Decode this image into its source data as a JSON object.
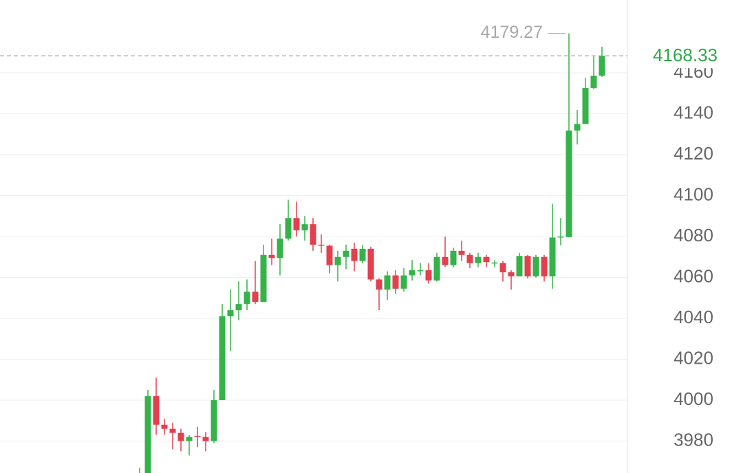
{
  "chart_data": {
    "type": "candlestick",
    "up_color": "#34b349",
    "down_color": "#e2404e",
    "grid": true,
    "ylim": [
      3964.4,
      4195.6
    ],
    "yticks": [
      3980,
      4000,
      4020,
      4040,
      4060,
      4080,
      4100,
      4120,
      4140,
      4160
    ],
    "open": [
      3955,
      3962,
      4002,
      3988,
      3986,
      3984,
      3980,
      3982.5,
      3982,
      3980,
      4000,
      4041,
      4044,
      4047,
      4053,
      4048,
      4071,
      4069.5,
      4079,
      4089,
      4083,
      4086,
      4076,
      4075.5,
      4066,
      4070,
      4074,
      4068,
      4074,
      4059,
      4054,
      4061,
      4054.5,
      4061,
      4063,
      4063.5,
      4058.5,
      4070,
      4066,
      4073,
      4071,
      4067,
      4070,
      4067,
      4067,
      4062.5,
      4060.5,
      4070.5,
      4060.5,
      4070,
      4060.5,
      4079.5,
      4079.7,
      4131.8,
      4135,
      4152.6,
      4158.6
    ],
    "high": [
      3967,
      4005,
      4011,
      3991,
      3989,
      3986,
      3983,
      3987,
      3984.5,
      4005,
      4047,
      4054,
      4058,
      4059,
      4068,
      4076,
      4079,
      4086,
      4098,
      4097,
      4090,
      4089,
      4081,
      4076,
      4073,
      4076,
      4077,
      4076,
      4075,
      4059.5,
      4063,
      4063.5,
      4064.5,
      4068.5,
      4067,
      4067,
      4072,
      4080,
      4074.5,
      4078,
      4072,
      4072,
      4071,
      4068.5,
      4068,
      4063.5,
      4072,
      4071,
      4071,
      4071,
      4096,
      4089,
      4179.27,
      4141.8,
      4157.6,
      4168,
      4172.8
    ],
    "low": [
      3950,
      3958,
      3983,
      3983,
      3976,
      3975,
      3973,
      3977,
      3975,
      3979,
      4000,
      4024,
      4039,
      4044,
      4047,
      4048,
      4066,
      4061,
      4078,
      4080,
      4078,
      4073,
      4072,
      4062,
      4058,
      4064,
      4063,
      4067,
      4058,
      4044,
      4049,
      4052,
      4053,
      4058.5,
      4061,
      4057,
      4058,
      4065,
      4065,
      4068,
      4064.5,
      4065,
      4065,
      4065,
      4058,
      4054,
      4060.5,
      4059.5,
      4060,
      4058,
      4054.5,
      4075.6,
      4079.5,
      4125,
      4135,
      4152,
      4158
    ],
    "close": [
      3962,
      4002,
      3988,
      3986,
      3984,
      3980,
      3982,
      3982,
      3980,
      4000,
      4041,
      4044,
      4047,
      4053,
      4048,
      4071,
      4069.5,
      4079,
      4089,
      4083,
      4086,
      4076,
      4075.5,
      4066,
      4070,
      4073,
      4068,
      4074,
      4059,
      4054,
      4061,
      4054.5,
      4061,
      4063.5,
      4063.5,
      4058.5,
      4070,
      4066,
      4073,
      4071,
      4067,
      4070,
      4067.5,
      4067.3,
      4062.5,
      4060.5,
      4070.5,
      4060.5,
      4070,
      4060.5,
      4079.5,
      4080,
      4131.8,
      4135,
      4152.6,
      4158.6,
      4168.33
    ]
  }
}
